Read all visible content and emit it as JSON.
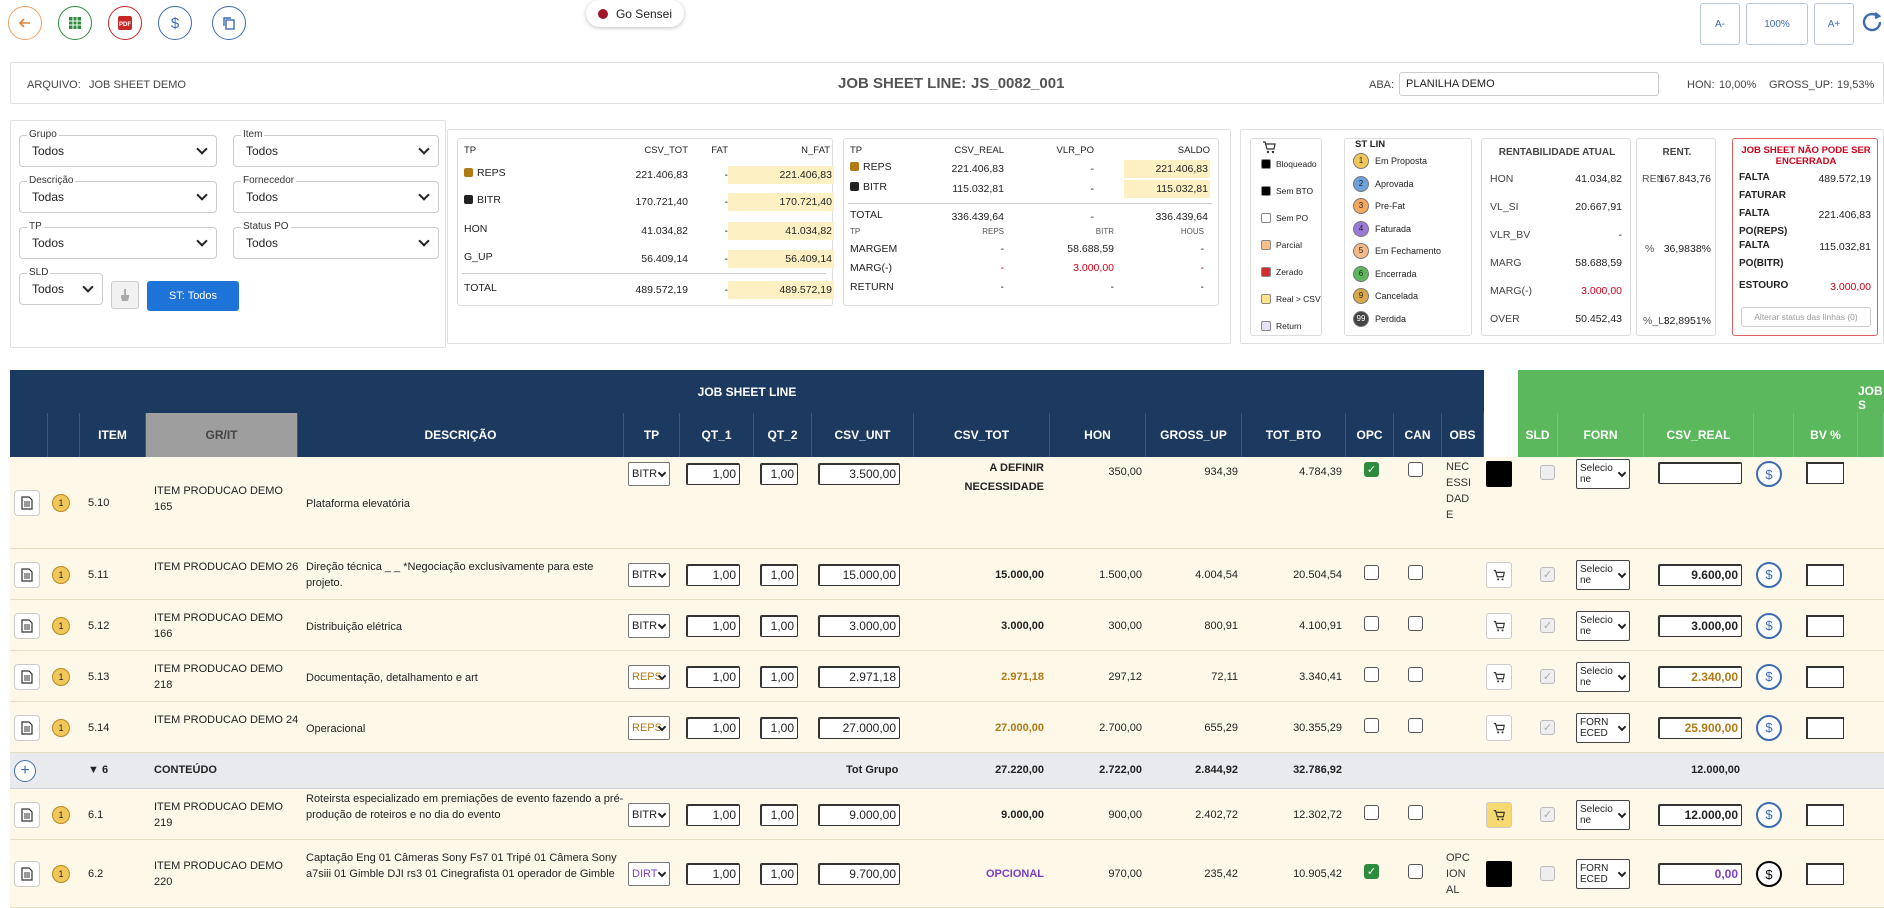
{
  "toolbar": {
    "sensei": "Go Sensei",
    "font_minus": "A-",
    "zoom": "100%",
    "font_plus": "A+"
  },
  "colors": {
    "navy": "#1c3a60",
    "green": "#5cb85c",
    "highlight": "#fdf1c4",
    "reps": "#b07a14",
    "bitr": "#222222",
    "red": "#d0021b"
  },
  "info": {
    "arquivo_label": "ARQUIVO:",
    "arquivo": "JOB SHEET DEMO",
    "title_label": "JOB SHEET LINE:",
    "title": "JS_0082_001",
    "aba_label": "ABA:",
    "aba": "PLANILHA DEMO",
    "hon_label": "HON:",
    "hon": "10,00%",
    "gross_label": "GROSS_UP:",
    "gross": "19,53%"
  },
  "filters": {
    "grupo": {
      "label": "Grupo",
      "value": "Todos"
    },
    "item": {
      "label": "Item",
      "value": "Todos"
    },
    "descricao": {
      "label": "Descrição",
      "value": "Todas"
    },
    "fornecedor": {
      "label": "Fornecedor",
      "value": "Todos"
    },
    "tp": {
      "label": "TP",
      "value": "Todos"
    },
    "status_po": {
      "label": "Status PO",
      "value": "Todos"
    },
    "sld": {
      "label": "SLD",
      "value": "Todos"
    },
    "st_button": "ST: Todos"
  },
  "summary1": {
    "headers": [
      "TP",
      "CSV_TOT",
      "FAT",
      "N_FAT"
    ],
    "rows": [
      {
        "tp": "REPS",
        "csv": "221.406,83",
        "fat": "-",
        "nfat": "221.406,83"
      },
      {
        "tp": "BITR",
        "csv": "170.721,40",
        "fat": "-",
        "nfat": "170.721,40"
      },
      {
        "tp": "HON",
        "csv": "41.034,82",
        "fat": "-",
        "nfat": "41.034,82"
      },
      {
        "tp": "G_UP",
        "csv": "56.409,14",
        "fat": "-",
        "nfat": "56.409,14"
      },
      {
        "tp": "TOTAL",
        "csv": "489.572,19",
        "fat": "-",
        "nfat": "489.572,19"
      }
    ]
  },
  "summary2": {
    "headers": [
      "TP",
      "CSV_REAL",
      "VLR_PO",
      "SALDO"
    ],
    "rows": [
      {
        "tp": "REPS",
        "csv": "221.406,83",
        "po": "-",
        "saldo": "221.406,83"
      },
      {
        "tp": "BITR",
        "csv": "115.032,81",
        "po": "-",
        "saldo": "115.032,81"
      },
      {
        "tp": "TOTAL",
        "csv": "336.439,64",
        "po": "-",
        "saldo": "336.439,64"
      }
    ],
    "sub_headers": [
      "TP",
      "REPS",
      "BITR",
      "HOUS"
    ],
    "sub_rows": [
      {
        "tp": "MARGEM",
        "reps": "-",
        "bitr": "58.688,59",
        "hous": "-"
      },
      {
        "tp": "MARG(-)",
        "reps": "-",
        "bitr": "3.000,00",
        "hous": "-"
      },
      {
        "tp": "RETURN",
        "reps": "-",
        "bitr": "-",
        "hous": "-"
      }
    ]
  },
  "legend": [
    "Bloqueado",
    "Sem BTO",
    "Sem PO",
    "Parcial",
    "Zerado",
    "Real > CSV",
    "Return"
  ],
  "st_lin": {
    "title": "ST LIN",
    "items": [
      {
        "n": "1",
        "label": "Em Proposta",
        "color": "#f0c75a"
      },
      {
        "n": "2",
        "label": "Aprovada",
        "color": "#6ea0dc"
      },
      {
        "n": "3",
        "label": "Pre-Fat",
        "color": "#f5a85e"
      },
      {
        "n": "4",
        "label": "Faturada",
        "color": "#9a7ad8"
      },
      {
        "n": "5",
        "label": "Em Fechamento",
        "color": "#f5b887"
      },
      {
        "n": "6",
        "label": "Encerrada",
        "color": "#5cb85c"
      },
      {
        "n": "9",
        "label": "Cancelada",
        "color": "#d9a84a"
      },
      {
        "n": "99",
        "label": "Perdida",
        "color": "#444444"
      }
    ]
  },
  "rentab": {
    "title": "RENTABILIDADE ATUAL",
    "rows": [
      {
        "k": "HON",
        "v": "41.034,82"
      },
      {
        "k": "VL_SI",
        "v": "20.667,91"
      },
      {
        "k": "VLR_BV",
        "v": "-"
      },
      {
        "k": "MARG",
        "v": "58.688,59"
      },
      {
        "k": "MARG(-)",
        "v": "3.000,00"
      },
      {
        "k": "OVER",
        "v": "50.452,43"
      }
    ]
  },
  "rent": {
    "title": "RENT.",
    "k1": "REN",
    "v1": "167.843,76",
    "k2": "%",
    "v2": "36,9838%",
    "k3": "%_LI",
    "v3": "32,8951%"
  },
  "warn": {
    "title": "JOB SHEET NÃO PODE SER ENCERRADA",
    "rows": [
      {
        "k": "FALTA FATURAR",
        "v": "489.572,19"
      },
      {
        "k": "FALTA PO(REPS)",
        "v": "221.406,83"
      },
      {
        "k": "FALTA PO(BITR)",
        "v": "115.032,81"
      },
      {
        "k": "ESTOURO",
        "v": "3.000,00"
      }
    ],
    "button": "Alterar status das linhas (0)"
  },
  "table": {
    "title": "JOB SHEET LINE",
    "title2": "JOB S",
    "cols": [
      "ITEM",
      "GR/IT",
      "DESCRIÇÃO",
      "TP",
      "QT_1",
      "QT_2",
      "CSV_UNT",
      "CSV_TOT",
      "HON",
      "GROSS_UP",
      "TOT_BTO",
      "OPC",
      "CAN",
      "OBS"
    ],
    "gcols": [
      "SLD",
      "FORN",
      "CSV_REAL",
      "BV %"
    ],
    "rows": [
      {
        "item": "5.10",
        "grit": "ITEM PRODUCAO DEMO 165",
        "desc": "Plataforma elevatória",
        "tp": "BITR",
        "qt1": "1,00",
        "qt2": "1,00",
        "unt": "3.500,00",
        "tot": "A DEFINIR NECESSIDADE",
        "hon": "350,00",
        "gup": "934,39",
        "bto": "4.784,39",
        "obs": "NEC ESSI DAD E",
        "forn": "Selecione",
        "real": ""
      },
      {
        "item": "5.11",
        "grit": "ITEM PRODUCAO DEMO 26",
        "desc": "Direção técnica _ _ *Negociação exclusivamente para este projeto.",
        "tp": "BITR",
        "qt1": "1,00",
        "qt2": "1,00",
        "unt": "15.000,00",
        "tot": "15.000,00",
        "hon": "1.500,00",
        "gup": "4.004,54",
        "bto": "20.504,54",
        "obs": "",
        "forn": "Selecione",
        "real": "9.600,00"
      },
      {
        "item": "5.12",
        "grit": "ITEM PRODUCAO DEMO 166",
        "desc": "Distribuição elétrica",
        "tp": "BITR",
        "qt1": "1,00",
        "qt2": "1,00",
        "unt": "3.000,00",
        "tot": "3.000,00",
        "hon": "300,00",
        "gup": "800,91",
        "bto": "4.100,91",
        "obs": "",
        "forn": "Selecione",
        "real": "3.000,00"
      },
      {
        "item": "5.13",
        "grit": "ITEM PRODUCAO DEMO 218",
        "desc": "Documentação, detalhamento e art",
        "tp": "REPS",
        "qt1": "1,00",
        "qt2": "1,00",
        "unt": "2.971,18",
        "tot": "2.971,18",
        "hon": "297,12",
        "gup": "72,11",
        "bto": "3.340,41",
        "obs": "",
        "forn": "Selecione",
        "real": "2.340,00"
      },
      {
        "item": "5.14",
        "grit": "ITEM PRODUCAO DEMO 24",
        "desc": "Operacional",
        "tp": "REPS",
        "qt1": "1,00",
        "qt2": "1,00",
        "unt": "27.000,00",
        "tot": "27.000,00",
        "hon": "2.700,00",
        "gup": "655,29",
        "bto": "30.355,29",
        "obs": "",
        "forn": "FORNECED",
        "real": "25.900,00"
      }
    ],
    "group": {
      "num": "▼ 6",
      "name": "CONTEÚDO",
      "label": "Tot Grupo",
      "tot": "27.220,00",
      "hon": "2.722,00",
      "gup": "2.844,92",
      "bto": "32.786,92",
      "real": "12.000,00"
    },
    "rows2": [
      {
        "item": "6.1",
        "grit": "ITEM PRODUCAO DEMO 219",
        "desc": "Roteirsta especializado em premiações de evento fazendo a pré-produção de roteiros e no dia do evento",
        "tp": "BITR",
        "qt1": "1,00",
        "qt2": "1,00",
        "unt": "9.000,00",
        "tot": "9.000,00",
        "hon": "900,00",
        "gup": "2.402,72",
        "bto": "12.302,72",
        "obs": "",
        "forn": "Selecione",
        "real": "12.000,00"
      },
      {
        "item": "6.2",
        "grit": "ITEM PRODUCAO DEMO 220",
        "desc": "Captação Eng 01 Câmeras Sony Fs7 01 Tripé 01 Câmera Sony a7siii 01 Gimble DJI rs3 01 Cinegrafista 01 operador de Gimble",
        "tp": "DIRT",
        "qt1": "1,00",
        "qt2": "1,00",
        "unt": "9.700,00",
        "tot": "OPCIONAL",
        "hon": "970,00",
        "gup": "235,42",
        "bto": "10.905,42",
        "obs": "OPC ION AL",
        "forn": "FORNECED",
        "real": "0,00"
      }
    ]
  }
}
